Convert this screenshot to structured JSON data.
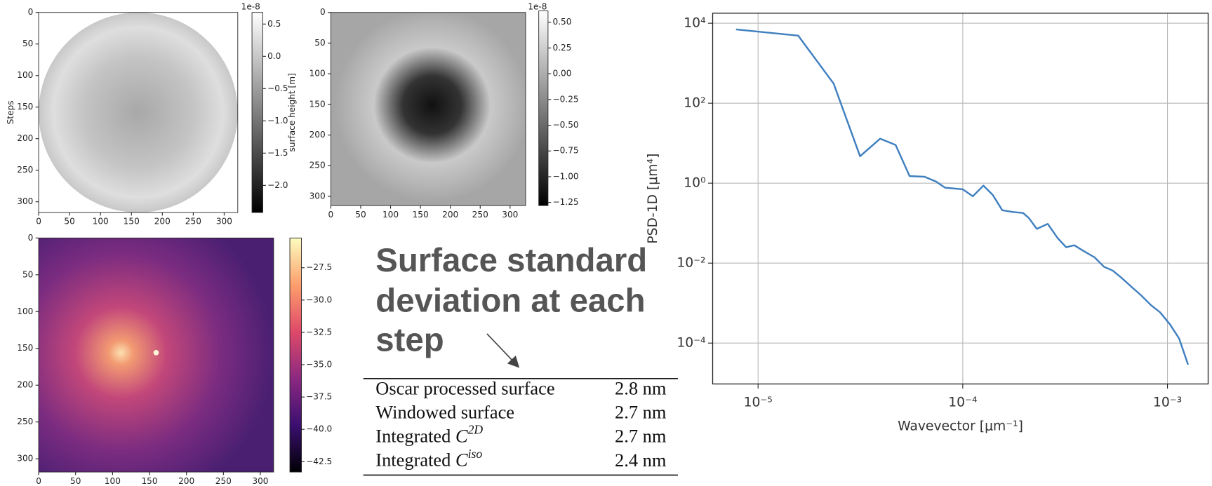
{
  "chart_data": [
    {
      "type": "heatmap",
      "ylabel": "Steps",
      "xlim": [
        0,
        322
      ],
      "ylim": [
        0,
        317
      ],
      "xticks": [
        0,
        50,
        100,
        150,
        200,
        250,
        300
      ],
      "yticks": [
        0,
        50,
        100,
        150,
        200,
        250,
        300
      ],
      "colorbar": {
        "label": "surface height [m]",
        "offset_text": "1e-8",
        "lim": [
          -2.42,
          0.68
        ],
        "ticks": [
          0.5,
          {
            "value": 0,
            "label": "0.0"
          },
          {
            "value": -0.5,
            "label": "−0.5"
          },
          {
            "value": -1,
            "label": "−1.0"
          },
          {
            "value": -1.5,
            "label": "−1.5"
          },
          {
            "value": -2,
            "label": "−2.0"
          }
        ]
      }
    },
    {
      "type": "heatmap",
      "xlim": [
        0,
        326
      ],
      "ylim": [
        0,
        315
      ],
      "xticks": [
        0,
        50,
        100,
        150,
        200,
        250,
        300
      ],
      "yticks": [
        0,
        50,
        100,
        150,
        200,
        250,
        300
      ],
      "colorbar": {
        "offset_text": "1e-8",
        "lim": [
          -1.28,
          0.61
        ],
        "ticks": [
          {
            "value": 0.5,
            "label": "0.50"
          },
          0.25,
          {
            "value": 0,
            "label": "0.00"
          },
          {
            "value": -0.25,
            "label": "−0.25"
          },
          {
            "value": -0.5,
            "label": "−0.50"
          },
          {
            "value": -0.75,
            "label": "−0.75"
          },
          {
            "value": -1,
            "label": "−1.00"
          },
          {
            "value": -1.25,
            "label": "−1.25"
          }
        ]
      }
    },
    {
      "type": "heatmap",
      "xlim": [
        0,
        318
      ],
      "ylim": [
        0,
        318
      ],
      "xticks": [
        0,
        50,
        100,
        150,
        200,
        250,
        300
      ],
      "yticks": [
        0,
        50,
        100,
        150,
        200,
        250,
        300
      ],
      "colorbar": {
        "lim": [
          -43.3,
          -25.2
        ],
        "ticks": [
          {
            "value": -27.5,
            "label": "−27.5"
          },
          {
            "value": -30,
            "label": "−30.0"
          },
          {
            "value": -32.5,
            "label": "−32.5"
          },
          {
            "value": -35,
            "label": "−35.0"
          },
          {
            "value": -37.5,
            "label": "−37.5"
          },
          {
            "value": -40,
            "label": "−40.0"
          },
          {
            "value": -42.5,
            "label": "−42.5"
          }
        ]
      }
    },
    {
      "type": "line",
      "xlabel": "Wavevector [μm⁻¹]",
      "ylabel": "PSD-1D [μm⁴]",
      "xscale": "log",
      "yscale": "log",
      "grid": true,
      "xlim": [
        6e-06,
        0.00158
      ],
      "ylim": [
        9.5e-06,
        17800
      ],
      "xticks": [
        {
          "value": 1e-05,
          "label": "10⁻⁵"
        },
        {
          "value": 0.0001,
          "label": "10⁻⁴"
        },
        {
          "value": 0.001,
          "label": "10⁻³"
        }
      ],
      "yticks": [
        {
          "value": 10000,
          "label": "10⁴"
        },
        {
          "value": 100,
          "label": "10²"
        },
        {
          "value": 1,
          "label": "10⁰"
        },
        {
          "value": 0.01,
          "label": "10⁻²"
        },
        {
          "value": 0.0001,
          "label": "10⁻⁴"
        }
      ],
      "x": [
        7.8e-06,
        1.57e-05,
        2.34e-05,
        3.15e-05,
        3.95e-05,
        4.7e-05,
        5.5e-05,
        6.5e-05,
        7.4e-05,
        8.2e-05,
        0.0001,
        0.000112,
        0.000126,
        0.00014,
        0.000156,
        0.000176,
        0.000197,
        0.00021,
        0.00023,
        0.00026,
        0.00029,
        0.00032,
        0.00035,
        0.00039,
        0.00044,
        0.00049,
        0.00054,
        0.0006,
        0.00067,
        0.00074,
        0.00083,
        0.00092,
        0.00103,
        0.00114,
        0.00126
      ],
      "series": [
        {
          "color": "#3f7fbf",
          "values": [
            7000,
            4900,
            310,
            4.7,
            13,
            9,
            1.5,
            1.45,
            1.1,
            0.77,
            0.7,
            0.47,
            0.87,
            0.51,
            0.21,
            0.19,
            0.18,
            0.135,
            0.072,
            0.096,
            0.043,
            0.025,
            0.028,
            0.02,
            0.014,
            0.0081,
            0.0065,
            0.0042,
            0.0025,
            0.0016,
            0.00089,
            0.00059,
            0.00029,
            0.00013,
            2.9e-05
          ]
        }
      ]
    }
  ],
  "annotation": {
    "lines": [
      "Surface standard",
      "deviation at each",
      "step"
    ]
  },
  "table": {
    "rows": [
      {
        "label": "Oscar processed surface",
        "value": "2.8 nm"
      },
      {
        "label": "Windowed surface",
        "value": "2.7 nm"
      },
      {
        "label": "Integrated",
        "symbol": "C",
        "sup": "2D",
        "value": "2.7 nm"
      },
      {
        "label": "Integrated",
        "symbol": "C",
        "sup": "iso",
        "value": "2.4 nm"
      }
    ]
  }
}
